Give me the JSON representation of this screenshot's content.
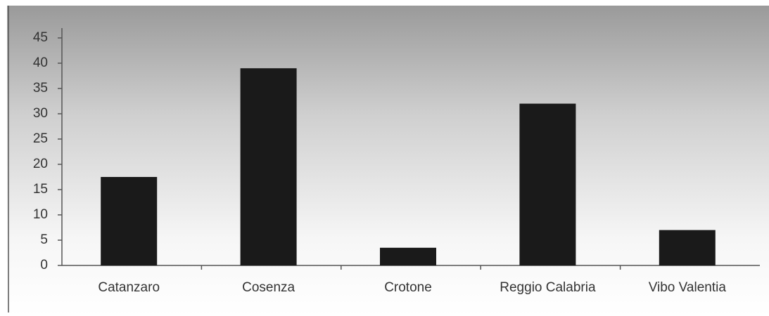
{
  "chart_data": {
    "type": "bar",
    "categories": [
      "Catanzaro",
      "Cosenza",
      "Crotone",
      "Reggio Calabria",
      "Vibo Valentia"
    ],
    "values": [
      17.5,
      39,
      3.5,
      32,
      7
    ],
    "color": "#1a1a1a",
    "ylim": [
      0,
      45
    ],
    "yticks": [
      0,
      5,
      10,
      15,
      20,
      25,
      30,
      35,
      40,
      45
    ],
    "grid": false
  }
}
